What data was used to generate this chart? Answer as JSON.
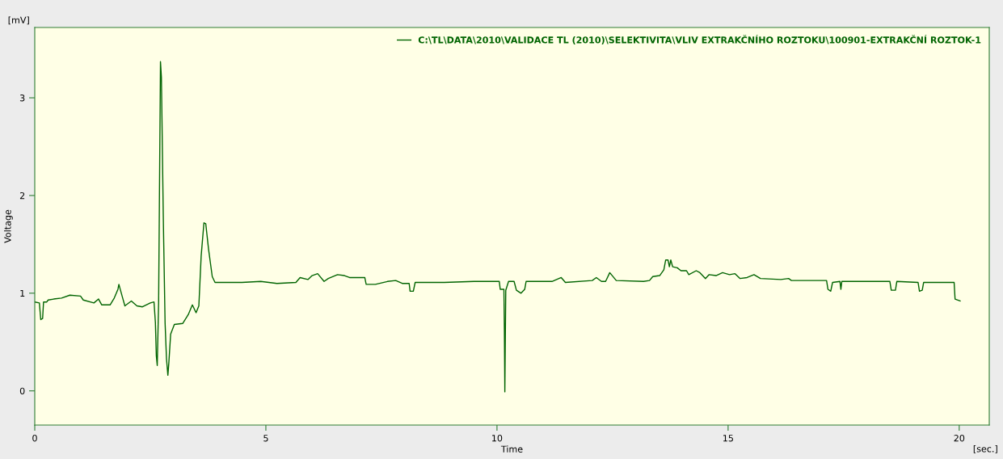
{
  "chart_data": {
    "type": "line",
    "xlabel": "Time",
    "ylabel": "Voltage",
    "annotations": [
      "[mV]",
      "[sec.]"
    ],
    "xlim": [
      0,
      20.65
    ],
    "ylim": [
      -0.35,
      3.72
    ],
    "xticks": [
      0,
      5,
      10,
      15,
      20
    ],
    "yticks": [
      0,
      1,
      2,
      3
    ],
    "grid": false,
    "legend": "top right",
    "marker": "none",
    "line_style": "solid",
    "series": [
      {
        "name": "C:\\TL\\DATA\\2010\\VALIDACE TL (2010)\\SELEKTIVITA\\VLIV EXTRAKČNÍHO ROZTOKU\\100901-EXTRAKČNÍ ROZTOK-1",
        "color": "#006400",
        "x": [
          0,
          0.1,
          0.13,
          0.17,
          0.19,
          0.26,
          0.29,
          0.41,
          0.58,
          0.76,
          0.99,
          1.05,
          1.28,
          1.38,
          1.45,
          1.63,
          1.72,
          1.8,
          1.82,
          1.89,
          1.95,
          2.09,
          2.21,
          2.33,
          2.5,
          2.58,
          2.61,
          2.63,
          2.65,
          2.68,
          2.72,
          2.74,
          2.76,
          2.78,
          2.79,
          2.82,
          2.85,
          2.88,
          2.9,
          2.94,
          3.02,
          3.2,
          3.32,
          3.41,
          3.49,
          3.55,
          3.6,
          3.66,
          3.7,
          3.76,
          3.84,
          3.9,
          4.48,
          4.89,
          5.24,
          5.65,
          5.74,
          5.91,
          6.0,
          6.12,
          6.26,
          6.35,
          6.55,
          6.7,
          6.81,
          6.96,
          7.14,
          7.17,
          7.37,
          7.63,
          7.81,
          7.95,
          8.1,
          8.12,
          8.19,
          8.23,
          8.86,
          9.5,
          10.05,
          10.07,
          10.15,
          10.16,
          10.17,
          10.18,
          10.19,
          10.25,
          10.37,
          10.42,
          10.52,
          10.6,
          10.63,
          11.19,
          11.39,
          11.48,
          12.06,
          12.15,
          12.26,
          12.35,
          12.44,
          12.58,
          13.17,
          13.3,
          13.37,
          13.52,
          13.61,
          13.65,
          13.7,
          13.73,
          13.76,
          13.8,
          13.9,
          13.98,
          14.1,
          14.15,
          14.31,
          14.39,
          14.51,
          14.59,
          14.74,
          14.88,
          15.03,
          15.15,
          15.26,
          15.41,
          15.56,
          15.7,
          16.14,
          16.31,
          16.37,
          17.13,
          17.16,
          17.22,
          17.26,
          17.42,
          17.44,
          17.46,
          18.5,
          18.53,
          18.62,
          18.65,
          19.11,
          19.14,
          19.2,
          19.23,
          19.89,
          19.91,
          20.02
        ],
        "values": [
          0.91,
          0.9,
          0.73,
          0.74,
          0.91,
          0.91,
          0.93,
          0.94,
          0.95,
          0.98,
          0.97,
          0.93,
          0.9,
          0.94,
          0.88,
          0.88,
          0.95,
          1.04,
          1.09,
          0.97,
          0.87,
          0.92,
          0.87,
          0.86,
          0.9,
          0.91,
          0.7,
          0.36,
          0.26,
          0.91,
          3.37,
          3.21,
          2.51,
          1.81,
          1.52,
          0.69,
          0.33,
          0.16,
          0.28,
          0.58,
          0.68,
          0.69,
          0.78,
          0.88,
          0.8,
          0.87,
          1.38,
          1.72,
          1.71,
          1.45,
          1.17,
          1.11,
          1.11,
          1.12,
          1.1,
          1.11,
          1.16,
          1.14,
          1.18,
          1.2,
          1.12,
          1.15,
          1.19,
          1.18,
          1.16,
          1.16,
          1.16,
          1.09,
          1.09,
          1.12,
          1.13,
          1.1,
          1.1,
          1.02,
          1.02,
          1.11,
          1.11,
          1.12,
          1.12,
          1.04,
          1.04,
          0.63,
          -0.01,
          0.53,
          1.03,
          1.12,
          1.12,
          1.03,
          1.0,
          1.04,
          1.12,
          1.12,
          1.16,
          1.11,
          1.13,
          1.16,
          1.12,
          1.12,
          1.21,
          1.13,
          1.12,
          1.13,
          1.17,
          1.18,
          1.24,
          1.34,
          1.34,
          1.27,
          1.34,
          1.27,
          1.26,
          1.23,
          1.23,
          1.19,
          1.23,
          1.21,
          1.15,
          1.19,
          1.18,
          1.21,
          1.19,
          1.2,
          1.15,
          1.16,
          1.19,
          1.15,
          1.14,
          1.15,
          1.13,
          1.13,
          1.04,
          1.02,
          1.11,
          1.12,
          1.04,
          1.12,
          1.12,
          1.03,
          1.03,
          1.12,
          1.11,
          1.02,
          1.03,
          1.11,
          1.11,
          0.94,
          0.92
        ]
      }
    ]
  }
}
